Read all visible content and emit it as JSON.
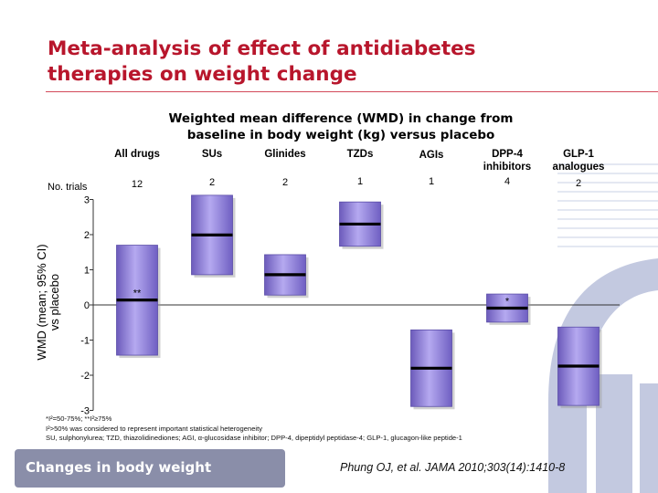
{
  "slide": {
    "title_line1": "Meta-analysis of effect of antidiabetes",
    "title_line2": "therapies on weight change",
    "section_tab": "Changes in body weight",
    "citation": "Phung OJ, et al. JAMA 2010;303(14):1410-8",
    "footnote1": "*I²=50-75%; **I²≥75%",
    "footnote2": "I²>50% was considered to represent important statistical heterogeneity",
    "footnote3": "SU, sulphonylurea; TZD, thiazolidinediones; AGI, α-glucosidase inhibitor; DPP-4, dipeptidyl peptidase-4; GLP-1, glucagon-like peptide-1",
    "colors": {
      "title": "#b8162c",
      "bar": "#9d8ce0",
      "tab": "#8a8ea9",
      "deco": "#c3c9e0"
    }
  },
  "chart_data": {
    "type": "forest",
    "title": "Weighted mean difference (WMD) in change from baseline in body weight (kg) versus placebo",
    "title_line1": "Weighted mean difference (WMD) in change from",
    "title_line2": "baseline in body weight (kg) versus placebo",
    "ylabel_line1": "WMD (mean; 95% CI)",
    "ylabel_line2": "vs placebo",
    "ylim": [
      -3,
      3
    ],
    "yticks": [
      3,
      2,
      1,
      0,
      -1,
      -2,
      -3
    ],
    "trials_label": "No. trials",
    "categories": [
      {
        "label": [
          "All drugs"
        ],
        "trials": "12"
      },
      {
        "label": [
          "SUs"
        ],
        "trials": "2"
      },
      {
        "label": [
          "Glinides"
        ],
        "trials": "2"
      },
      {
        "label": [
          "TZDs"
        ],
        "trials": "1"
      },
      {
        "label": [
          "AGIs"
        ],
        "trials": "1"
      },
      {
        "label": [
          "DPP-4",
          "inhibitors"
        ],
        "trials": "4"
      },
      {
        "label": [
          "GLP-1",
          "analogues"
        ],
        "trials": "2"
      }
    ],
    "series": [
      {
        "values": [
          {
            "mean": 0.14,
            "lower": -1.43,
            "upper": 1.7,
            "marker": "**"
          },
          {
            "mean": 1.99,
            "lower": 0.86,
            "upper": 3.12,
            "marker": ""
          },
          {
            "mean": 0.86,
            "lower": 0.28,
            "upper": 1.43,
            "marker": ""
          },
          {
            "mean": 2.3,
            "lower": 1.67,
            "upper": 2.93,
            "marker": ""
          },
          {
            "mean": -1.8,
            "lower": -2.89,
            "upper": -0.71,
            "marker": ""
          },
          {
            "mean": -0.09,
            "lower": -0.49,
            "upper": 0.31,
            "marker": "*"
          },
          {
            "mean": -1.74,
            "lower": -2.86,
            "upper": -0.63,
            "marker": ""
          }
        ]
      }
    ]
  }
}
